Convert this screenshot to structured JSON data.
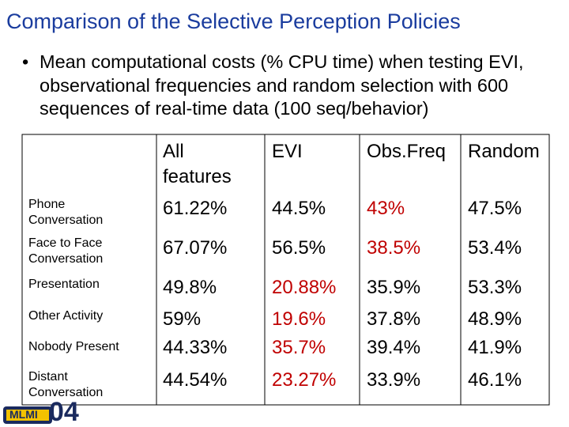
{
  "title": "Comparison of the Selective Perception Policies",
  "bullet": "Mean computational costs (% CPU time) when testing EVI, observational frequencies and random selection with 600 sequences of real-time data (100 seq/behavior)",
  "table": {
    "headers": [
      "All features",
      "EVI",
      "Obs.Freq",
      "Random"
    ],
    "rows": [
      [
        "Phone Conversation",
        "61.22%",
        "44.5%",
        "43%",
        "47.5%"
      ],
      [
        "Face to Face Conversation",
        "67.07%",
        "56.5%",
        "38.5%",
        "53.4%"
      ],
      [
        "Presentation",
        "49.8%",
        "20.88%",
        "35.9%",
        "53.3%"
      ],
      [
        "Other Activity",
        "59%",
        "19.6%",
        "37.8%",
        "48.9%"
      ],
      [
        "Nobody Present",
        "44.33%",
        "35.7%",
        "39.4%",
        "41.9%"
      ],
      [
        "Distant Conversation",
        "44.54%",
        "23.27%",
        "33.9%",
        "46.1%"
      ]
    ],
    "emphasis": {
      "color": "#c00000",
      "cells": [
        [
          0,
          3
        ],
        [
          1,
          3
        ],
        [
          2,
          2
        ],
        [
          3,
          2
        ],
        [
          4,
          2
        ],
        [
          5,
          2
        ]
      ]
    }
  },
  "logo": {
    "text": "MLMI",
    "number": "04"
  }
}
